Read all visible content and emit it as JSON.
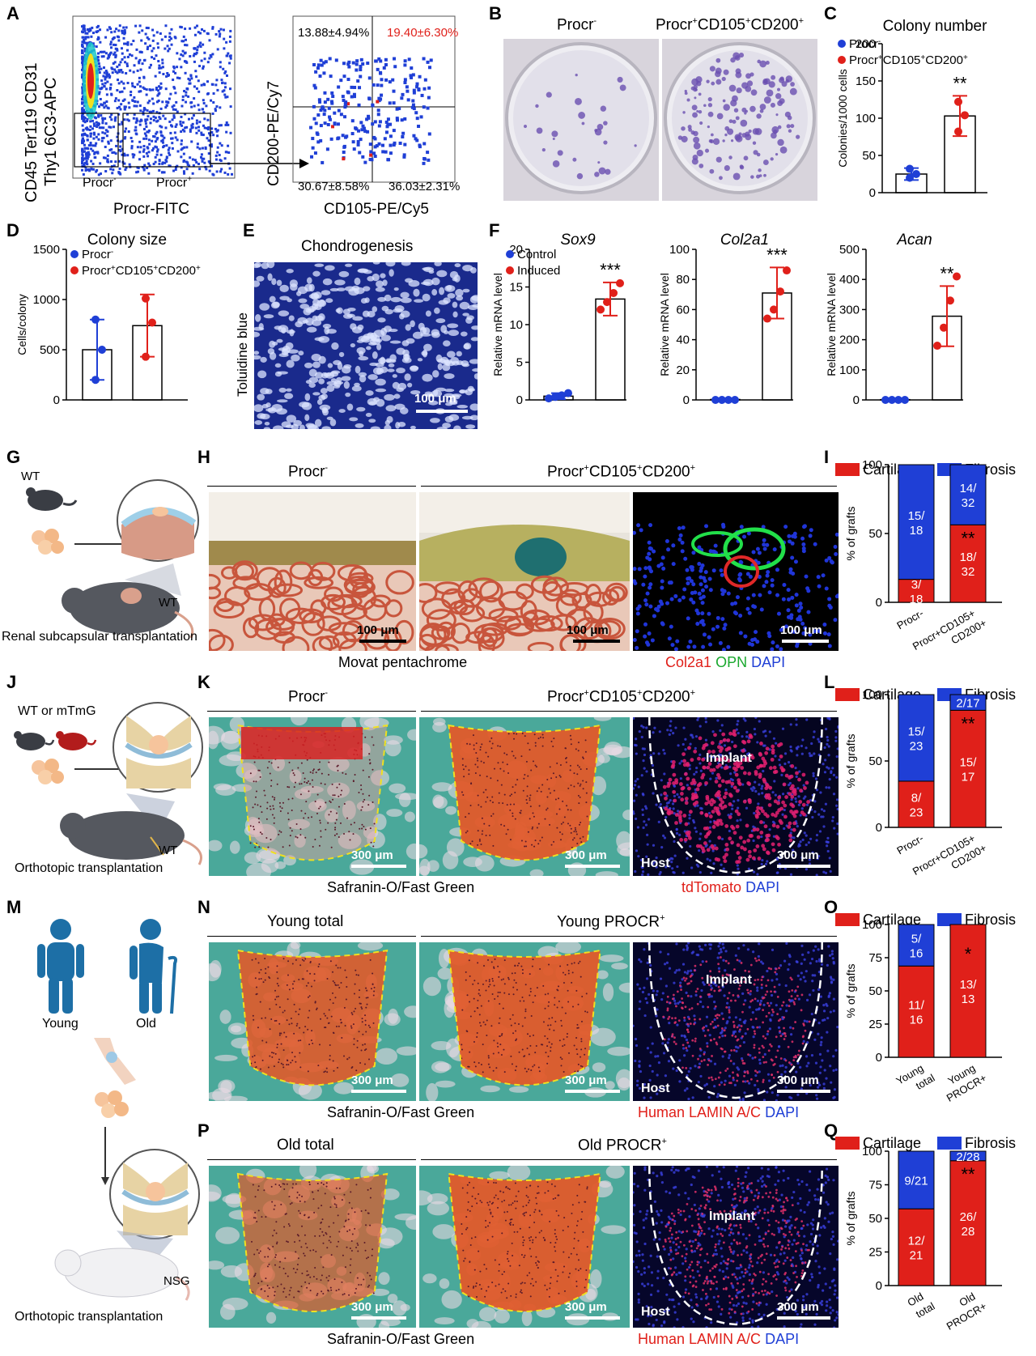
{
  "panel_letters": [
    "A",
    "B",
    "C",
    "D",
    "E",
    "F",
    "G",
    "H",
    "I",
    "J",
    "K",
    "L",
    "M",
    "N",
    "O",
    "P",
    "Q"
  ],
  "A": {
    "left_ylabel": "CD45 Ter119 CD31 Thy1 6C3-APC",
    "left_ylabel_1": "CD45 Ter119 CD31",
    "left_ylabel_2": "Thy1 6C3-APC",
    "left_xlabel": "Procr-FITC",
    "gate_neg": "Procr",
    "gate_neg_sup": "-",
    "gate_pos": "Procr",
    "gate_pos_sup": "+",
    "right_ylabel": "CD200-PE/Cy7",
    "right_xlabel": "CD105-PE/Cy5",
    "q_ul": "13.88±4.94%",
    "q_ur": "19.40±6.30%",
    "q_ll": "30.67±8.58%",
    "q_lr": "36.03±2.31%",
    "colors": {
      "dots": "#1f3fd6",
      "high": "#e0201a",
      "q_ur": "#e0201a"
    }
  },
  "B": {
    "title_left": "Procr",
    "title_left_sup": "-",
    "title_right": "Procr",
    "title_right_sup": "+",
    "title_right_mid": "CD105",
    "title_right_sup2": "+",
    "title_right_end": "CD200",
    "title_right_sup3": "+"
  },
  "E": {
    "title": "Chondrogenesis",
    "ylabel": "Toluidine blue",
    "scale": "100 μm"
  },
  "G": {
    "wt_top": "WT",
    "wt_bottom": "WT",
    "caption": "Renal subcapsular transplantation"
  },
  "H": {
    "title_left": "Procr",
    "title_left_sup": "-",
    "title_right": "Procr",
    "title_right_sup": "+",
    "title_right_mid": "CD105",
    "title_right_sup2": "+",
    "title_right_end": "CD200",
    "title_right_sup3": "+",
    "scale1": "100 μm",
    "scale2": "100 μm",
    "scale3": "100 μm",
    "caption_left": "Movat pentachrome",
    "caption_right_1": "Col2a1",
    "caption_right_2": "OPN",
    "caption_right_3": "DAPI"
  },
  "J": {
    "label": "WT or mTmG",
    "wt": "WT",
    "caption": "Orthotopic transplantation"
  },
  "K": {
    "title_left": "Procr",
    "title_left_sup": "-",
    "title_right": "Procr",
    "title_right_sup": "+",
    "title_right_mid": "CD105",
    "title_right_sup2": "+",
    "title_right_end": "CD200",
    "title_right_sup3": "+",
    "scale1": "300 μm",
    "scale2": "300 μm",
    "scale3": "300 μm",
    "implant": "Implant",
    "host": "Host",
    "caption_left": "Safranin-O/Fast Green",
    "caption_right_1": "tdTomato",
    "caption_right_2": "DAPI"
  },
  "M": {
    "young": "Young",
    "old": "Old",
    "nsg": "NSG",
    "caption": "Orthotopic transplantation"
  },
  "N": {
    "title_left": "Young total",
    "title_right": "Young PROCR",
    "title_right_sup": "+",
    "scale1": "300 μm",
    "scale2": "300 μm",
    "scale3": "300 μm",
    "implant": "Implant",
    "host": "Host",
    "caption_left": "Safranin-O/Fast Green",
    "caption_right_1": "Human LAMIN A/C",
    "caption_right_2": "DAPI"
  },
  "P": {
    "title_left": "Old total",
    "title_right": "Old PROCR",
    "title_right_sup": "+",
    "scale1": "300 μm",
    "scale2": "300 μm",
    "scale3": "300 μm",
    "implant": "Implant",
    "host": "Host",
    "caption_left": "Safranin-O/Fast Green",
    "caption_right_1": "Human LAMIN A/C",
    "caption_right_2": "DAPI"
  },
  "legend_two": {
    "neg": "Procr",
    "neg_sup": "-",
    "pos": "Procr",
    "pos_sup": "+",
    "pos_mid": "CD105",
    "pos_sup2": "+",
    "pos_end": "CD200",
    "pos_sup3": "+"
  },
  "chart_data": [
    {
      "id": "C",
      "type": "bar",
      "title": "Colony number",
      "ylabel": "Colonies/1000 cells",
      "ylim": [
        0,
        200
      ],
      "yticks": [
        0,
        50,
        100,
        150,
        200
      ],
      "categories": [
        "Procr-",
        "Procr+CD105+CD200+"
      ],
      "values": [
        25,
        103
      ],
      "errors": [
        8,
        27
      ],
      "points": [
        [
          20,
          25,
          32
        ],
        [
          82,
          104,
          122
        ]
      ],
      "significance": "**",
      "legend": "top-left",
      "colors": [
        "#1f3fd6",
        "#e0201a"
      ]
    },
    {
      "id": "D",
      "type": "bar",
      "title": "Colony size",
      "ylabel": "Cells/colony",
      "ylim": [
        0,
        1500
      ],
      "yticks": [
        0,
        500,
        1000,
        1500
      ],
      "categories": [
        "Procr-",
        "Procr+CD105+CD200+"
      ],
      "values": [
        500,
        740
      ],
      "errors": [
        300,
        310
      ],
      "points": [
        [
          200,
          500,
          800
        ],
        [
          430,
          770,
          1010
        ]
      ],
      "significance": "",
      "legend": "top-left",
      "colors": [
        "#1f3fd6",
        "#e0201a"
      ]
    },
    {
      "id": "F1",
      "type": "bar",
      "title": "Sox9",
      "ylabel": "Relative mRNA level",
      "ylim": [
        0,
        20
      ],
      "yticks": [
        0,
        5,
        10,
        15,
        20
      ],
      "series_names": [
        "Control",
        "Induced"
      ],
      "values": [
        0.5,
        13.4
      ],
      "errors": [
        0.4,
        2.2
      ],
      "points": [
        [
          0.2,
          0.4,
          0.6,
          0.9
        ],
        [
          12,
          13,
          14.2,
          15.5
        ]
      ],
      "significance": "***",
      "legend": "top-left",
      "colors": [
        "#1f3fd6",
        "#e0201a"
      ]
    },
    {
      "id": "F2",
      "type": "bar",
      "title": "Col2a1",
      "ylabel": "Relative mRNA level",
      "ylim": [
        0,
        100
      ],
      "yticks": [
        0,
        20,
        40,
        60,
        80,
        100
      ],
      "values": [
        0.3,
        71
      ],
      "errors": [
        0.2,
        17
      ],
      "points": [
        [
          0,
          0,
          0,
          0
        ],
        [
          54,
          60,
          72,
          86
        ]
      ],
      "significance": "***",
      "colors": [
        "#1f3fd6",
        "#e0201a"
      ]
    },
    {
      "id": "F3",
      "type": "bar",
      "title": "Acan",
      "ylabel": "Relative mRNA level",
      "ylim": [
        0,
        500
      ],
      "yticks": [
        0,
        100,
        200,
        300,
        400,
        500
      ],
      "values": [
        1,
        278
      ],
      "errors": [
        1,
        100
      ],
      "points": [
        [
          0,
          0,
          0,
          0
        ],
        [
          180,
          240,
          330,
          410
        ]
      ],
      "significance": "**",
      "colors": [
        "#1f3fd6",
        "#e0201a"
      ]
    },
    {
      "id": "I",
      "type": "stacked_bar",
      "ylabel": "% of grafts",
      "ylim": [
        0,
        100
      ],
      "yticks": [
        0,
        50,
        100
      ],
      "legend": [
        "Cartilage",
        "Fibrosis"
      ],
      "categories": [
        "Procr-",
        "Procr+CD105+ CD200+"
      ],
      "cartilage": [
        16.7,
        56.3
      ],
      "fibrosis": [
        83.3,
        43.7
      ],
      "labels_cart": [
        "3/\n18",
        "18/\n32"
      ],
      "labels_fib": [
        "15/\n18",
        "14/\n32"
      ],
      "significance": "**",
      "colors": [
        "#e0201a",
        "#1f3fd6"
      ]
    },
    {
      "id": "L",
      "type": "stacked_bar",
      "ylabel": "% of grafts",
      "ylim": [
        0,
        100
      ],
      "yticks": [
        0,
        50,
        100
      ],
      "legend": [
        "Cartilage",
        "Fibrosis"
      ],
      "categories": [
        "Procr-",
        "Procr+CD105+ CD200+"
      ],
      "cartilage": [
        34.8,
        88.2
      ],
      "fibrosis": [
        65.2,
        11.8
      ],
      "labels_cart": [
        "8/\n23",
        "15/\n17"
      ],
      "labels_fib": [
        "15/\n23",
        "2/17"
      ],
      "significance": "**",
      "colors": [
        "#e0201a",
        "#1f3fd6"
      ]
    },
    {
      "id": "O",
      "type": "stacked_bar",
      "ylabel": "% of grafts",
      "ylim": [
        0,
        100
      ],
      "yticks": [
        0,
        25,
        50,
        75,
        100
      ],
      "legend": [
        "Cartilage",
        "Fibrosis"
      ],
      "categories": [
        "Young total",
        "Young PROCR+"
      ],
      "cartilage": [
        68.75,
        100
      ],
      "fibrosis": [
        31.25,
        0
      ],
      "labels_cart": [
        "11/\n16",
        "13/\n13"
      ],
      "labels_fib": [
        "5/\n16",
        ""
      ],
      "significance": "*",
      "colors": [
        "#e0201a",
        "#1f3fd6"
      ]
    },
    {
      "id": "Q",
      "type": "stacked_bar",
      "ylabel": "% of grafts",
      "ylim": [
        0,
        100
      ],
      "yticks": [
        0,
        25,
        50,
        75,
        100
      ],
      "legend": [
        "Cartilage",
        "Fibrosis"
      ],
      "categories": [
        "Old total",
        "Old PROCR+"
      ],
      "cartilage": [
        57.1,
        92.9
      ],
      "fibrosis": [
        42.9,
        7.1
      ],
      "labels_cart": [
        "12/\n21",
        "26/\n28"
      ],
      "labels_fib": [
        "9/21",
        "2/28"
      ],
      "significance": "**",
      "colors": [
        "#e0201a",
        "#1f3fd6"
      ]
    }
  ]
}
